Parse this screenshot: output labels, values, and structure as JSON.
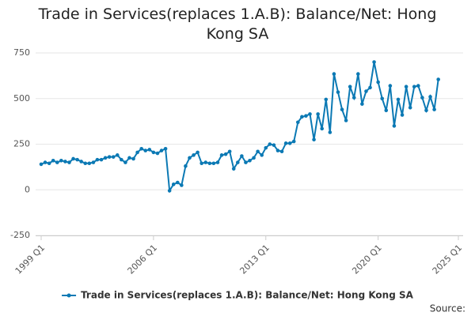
{
  "chart_data": {
    "type": "line",
    "title": "Trade in Services(replaces 1.A.B): Balance/Net: Hong Kong SA",
    "source": "Source:",
    "x": [
      "1999 Q1",
      "1999 Q2",
      "1999 Q3",
      "1999 Q4",
      "2000 Q1",
      "2000 Q2",
      "2000 Q3",
      "2000 Q4",
      "2001 Q1",
      "2001 Q2",
      "2001 Q3",
      "2001 Q4",
      "2002 Q1",
      "2002 Q2",
      "2002 Q3",
      "2002 Q4",
      "2003 Q1",
      "2003 Q2",
      "2003 Q3",
      "2003 Q4",
      "2004 Q1",
      "2004 Q2",
      "2004 Q3",
      "2004 Q4",
      "2005 Q1",
      "2005 Q2",
      "2005 Q3",
      "2005 Q4",
      "2006 Q1",
      "2006 Q2",
      "2006 Q3",
      "2006 Q4",
      "2007 Q1",
      "2007 Q2",
      "2007 Q3",
      "2007 Q4",
      "2008 Q1",
      "2008 Q2",
      "2008 Q3",
      "2008 Q4",
      "2009 Q1",
      "2009 Q2",
      "2009 Q3",
      "2009 Q4",
      "2010 Q1",
      "2010 Q2",
      "2010 Q3",
      "2010 Q4",
      "2011 Q1",
      "2011 Q2",
      "2011 Q3",
      "2011 Q4",
      "2012 Q1",
      "2012 Q2",
      "2012 Q3",
      "2012 Q4",
      "2013 Q1",
      "2013 Q2",
      "2013 Q3",
      "2013 Q4",
      "2014 Q1",
      "2014 Q2",
      "2014 Q3",
      "2014 Q4",
      "2015 Q1",
      "2015 Q2",
      "2015 Q3",
      "2015 Q4",
      "2016 Q1",
      "2016 Q2",
      "2016 Q3",
      "2016 Q4",
      "2017 Q1",
      "2017 Q2",
      "2017 Q3",
      "2017 Q4",
      "2018 Q1",
      "2018 Q2",
      "2018 Q3",
      "2018 Q4",
      "2019 Q1",
      "2019 Q2",
      "2019 Q3",
      "2019 Q4",
      "2020 Q1",
      "2020 Q2",
      "2020 Q3",
      "2020 Q4",
      "2021 Q1",
      "2021 Q2",
      "2021 Q3",
      "2021 Q4",
      "2022 Q1",
      "2022 Q2",
      "2022 Q3",
      "2022 Q4",
      "2023 Q1",
      "2023 Q2",
      "2023 Q3",
      "2023 Q4"
    ],
    "series": [
      {
        "name": "Trade in Services(replaces 1.A.B): Balance/Net: Hong Kong SA",
        "color": "#0b79b4",
        "values": [
          140,
          150,
          145,
          160,
          150,
          160,
          155,
          150,
          170,
          165,
          155,
          145,
          145,
          150,
          165,
          165,
          175,
          180,
          180,
          190,
          165,
          150,
          175,
          170,
          205,
          225,
          215,
          220,
          205,
          200,
          215,
          225,
          -5,
          30,
          40,
          25,
          130,
          175,
          190,
          205,
          145,
          150,
          145,
          145,
          150,
          190,
          195,
          210,
          115,
          150,
          185,
          150,
          160,
          175,
          210,
          190,
          230,
          250,
          245,
          215,
          210,
          255,
          255,
          265,
          370,
          400,
          405,
          415,
          275,
          415,
          335,
          495,
          315,
          635,
          535,
          440,
          380,
          565,
          505,
          635,
          470,
          540,
          560,
          700,
          590,
          500,
          435,
          570,
          350,
          495,
          410,
          565,
          450,
          565,
          570,
          505,
          435,
          510,
          440,
          605
        ]
      }
    ],
    "xlim": [
      "1999 Q1",
      "2025 Q1"
    ],
    "xticks": [
      "1999 Q1",
      "2006 Q1",
      "2013 Q1",
      "2020 Q1",
      "2025 Q1"
    ],
    "ylim": [
      -250,
      750
    ],
    "yticks": [
      -250,
      0,
      250,
      500,
      750
    ],
    "grid": true,
    "legend": "bottom"
  }
}
